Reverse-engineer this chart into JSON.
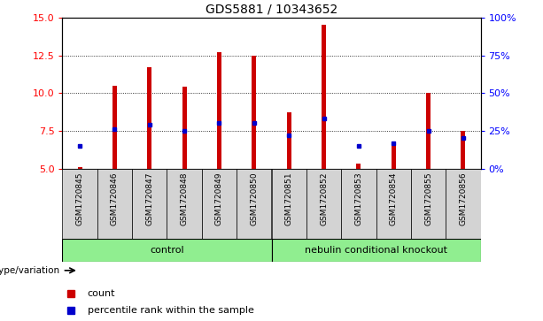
{
  "title": "GDS5881 / 10343652",
  "samples": [
    "GSM1720845",
    "GSM1720846",
    "GSM1720847",
    "GSM1720848",
    "GSM1720849",
    "GSM1720850",
    "GSM1720851",
    "GSM1720852",
    "GSM1720853",
    "GSM1720854",
    "GSM1720855",
    "GSM1720856"
  ],
  "bar_values": [
    5.1,
    10.5,
    11.7,
    10.4,
    12.7,
    12.5,
    8.7,
    14.5,
    5.3,
    6.8,
    10.0,
    7.5
  ],
  "blue_values": [
    6.5,
    7.6,
    7.9,
    7.5,
    8.05,
    8.0,
    7.2,
    8.3,
    6.5,
    6.7,
    7.5,
    7.0
  ],
  "bar_bottom": 5.0,
  "ylim": [
    5.0,
    15.0
  ],
  "ylim_right": [
    0,
    100
  ],
  "yticks_left": [
    5,
    7.5,
    10,
    12.5,
    15
  ],
  "yticks_right": [
    0,
    25,
    50,
    75,
    100
  ],
  "control_count": 6,
  "control_label": "control",
  "ko_label": "nebulin conditional knockout",
  "bar_color": "#cc0000",
  "blue_color": "#0000cc",
  "cell_bg": "#d3d3d3",
  "control_bg": "#90ee90",
  "ko_bg": "#90ee90",
  "group_label": "genotype/variation",
  "legend_count": "count",
  "legend_pct": "percentile rank within the sample",
  "bar_width": 0.12,
  "tick_label_fontsize": 6.5,
  "title_fontsize": 10
}
